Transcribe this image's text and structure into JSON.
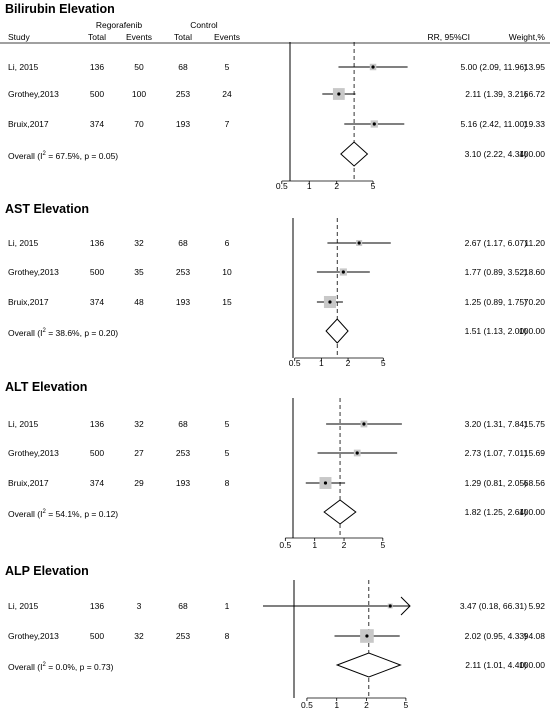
{
  "columns": {
    "study": "Study",
    "group1": "Regorafenib",
    "group2": "Control",
    "total1": "Total",
    "events1": "Events",
    "total2": "Total",
    "events2": "Events",
    "rr": "RR, 95%CI",
    "weight": "Weight,%"
  },
  "chart_data": [
    {
      "type": "forest",
      "title": "Bilirubin Elevation",
      "x_scale": "log",
      "xlim": [
        0.23,
        11.2
      ],
      "ticks": [
        "0.5",
        "1",
        "2",
        "5"
      ],
      "tick_values": [
        0.5,
        1,
        2,
        5
      ],
      "overall_value": 3.1,
      "rows": [
        {
          "study": "Li, 2015",
          "total1": "136",
          "events1": "50",
          "total2": "68",
          "events2": "5",
          "rr": 5.0,
          "lo": 2.09,
          "hi": 11.96,
          "rr_text": "5.00 (2.09, 11.96)",
          "weight": "13.95",
          "w": 13.95,
          "arrow": false
        },
        {
          "study": "Grothey,2013",
          "total1": "500",
          "events1": "100",
          "total2": "253",
          "events2": "24",
          "rr": 2.11,
          "lo": 1.39,
          "hi": 3.21,
          "rr_text": "2.11 (1.39, 3.21)",
          "weight": "66.72",
          "w": 66.72,
          "arrow": false
        },
        {
          "study": "Bruix,2017",
          "total1": "374",
          "events1": "70",
          "total2": "193",
          "events2": "7",
          "rr": 5.16,
          "lo": 2.42,
          "hi": 11.0,
          "rr_text": "5.16 (2.42, 11.00)",
          "weight": "19.33",
          "w": 19.33,
          "arrow": false
        }
      ],
      "overall": {
        "label_pre": "Overall  (I",
        "label_sup": "2",
        "label_post": " = 67.5%, p = 0.05)",
        "rr": 3.1,
        "lo": 2.22,
        "hi": 4.34,
        "rr_text": "3.10 (2.22, 4.34)",
        "weight": "100.00"
      }
    },
    {
      "type": "forest",
      "title": "AST Elevation",
      "x_scale": "log",
      "xlim": [
        0.27,
        9.5
      ],
      "ticks": [
        "0.5",
        "1",
        "2",
        "5"
      ],
      "tick_values": [
        0.5,
        1,
        2,
        5
      ],
      "overall_value": 1.51,
      "rows": [
        {
          "study": "Li, 2015",
          "total1": "136",
          "events1": "32",
          "total2": "68",
          "events2": "6",
          "rr": 2.67,
          "lo": 1.17,
          "hi": 6.07,
          "rr_text": "2.67 (1.17, 6.07)",
          "weight": "11.20",
          "w": 11.2,
          "arrow": false
        },
        {
          "study": "Grothey,2013",
          "total1": "500",
          "events1": "35",
          "total2": "253",
          "events2": "10",
          "rr": 1.77,
          "lo": 0.89,
          "hi": 3.52,
          "rr_text": "1.77 (0.89, 3.52)",
          "weight": "18.60",
          "w": 18.6,
          "arrow": false
        },
        {
          "study": "Bruix,2017",
          "total1": "374",
          "events1": "48",
          "total2": "193",
          "events2": "15",
          "rr": 1.25,
          "lo": 0.89,
          "hi": 1.75,
          "rr_text": "1.25 (0.89, 1.75)",
          "weight": "70.20",
          "w": 70.2,
          "arrow": false
        }
      ],
      "overall": {
        "label_pre": "Overall  (I",
        "label_sup": "2",
        "label_post": " = 38.6%, p = 0.20)",
        "rr": 1.51,
        "lo": 1.13,
        "hi": 2.0,
        "rr_text": "1.51 (1.13, 2.00)",
        "weight": "100.00"
      }
    },
    {
      "type": "forest",
      "title": "ALT Elevation",
      "x_scale": "log",
      "xlim": [
        0.25,
        9.5
      ],
      "ticks": [
        "0.5",
        "1",
        "2",
        "5"
      ],
      "tick_values": [
        0.5,
        1,
        2,
        5
      ],
      "overall_value": 1.82,
      "rows": [
        {
          "study": "Li, 2015",
          "total1": "136",
          "events1": "32",
          "total2": "68",
          "events2": "5",
          "rr": 3.2,
          "lo": 1.31,
          "hi": 7.84,
          "rr_text": "3.20 (1.31, 7.84)",
          "weight": "15.75",
          "w": 15.75,
          "arrow": false
        },
        {
          "study": "Grothey,2013",
          "total1": "500",
          "events1": "27",
          "total2": "253",
          "events2": "5",
          "rr": 2.73,
          "lo": 1.07,
          "hi": 7.01,
          "rr_text": "2.73 (1.07, 7.01)",
          "weight": "15.69",
          "w": 15.69,
          "arrow": false
        },
        {
          "study": "Bruix,2017",
          "total1": "374",
          "events1": "29",
          "total2": "193",
          "events2": "8",
          "rr": 1.29,
          "lo": 0.81,
          "hi": 2.05,
          "rr_text": "1.29 (0.81, 2.05)",
          "weight": "68.56",
          "w": 68.56,
          "arrow": false
        }
      ],
      "overall": {
        "label_pre": "Overall  (I",
        "label_sup": "2",
        "label_post": " = 54.1%, p = 0.12)",
        "rr": 1.82,
        "lo": 1.25,
        "hi": 2.64,
        "rr_text": "1.82 (1.25, 2.64)",
        "weight": "100.00"
      }
    },
    {
      "type": "forest",
      "title": "ALP Elevation",
      "x_scale": "log",
      "xlim": [
        0.13,
        5.5
      ],
      "ticks": [
        "0.5",
        "1",
        "2",
        "5"
      ],
      "tick_values": [
        0.5,
        1,
        2,
        5
      ],
      "overall_value": 2.11,
      "rows": [
        {
          "study": "Li, 2015",
          "total1": "136",
          "events1": "3",
          "total2": "68",
          "events2": "1",
          "rr": 3.47,
          "lo": 0.18,
          "hi": 66.31,
          "rr_text": "3.47 (0.18, 66.31)",
          "weight": "5.92",
          "w": 5.92,
          "arrow": true
        },
        {
          "study": "Grothey,2013",
          "total1": "500",
          "events1": "32",
          "total2": "253",
          "events2": "8",
          "rr": 2.02,
          "lo": 0.95,
          "hi": 4.33,
          "rr_text": "2.02 (0.95, 4.33)",
          "weight": "94.08",
          "w": 94.08,
          "arrow": false
        }
      ],
      "overall": {
        "label_pre": "Overall  (I",
        "label_sup": "2",
        "label_post": " = 0.0%, p = 0.73)",
        "rr": 2.11,
        "lo": 1.01,
        "hi": 4.4,
        "rr_text": "2.11 (1.01, 4.40)",
        "weight": "100.00"
      }
    }
  ]
}
